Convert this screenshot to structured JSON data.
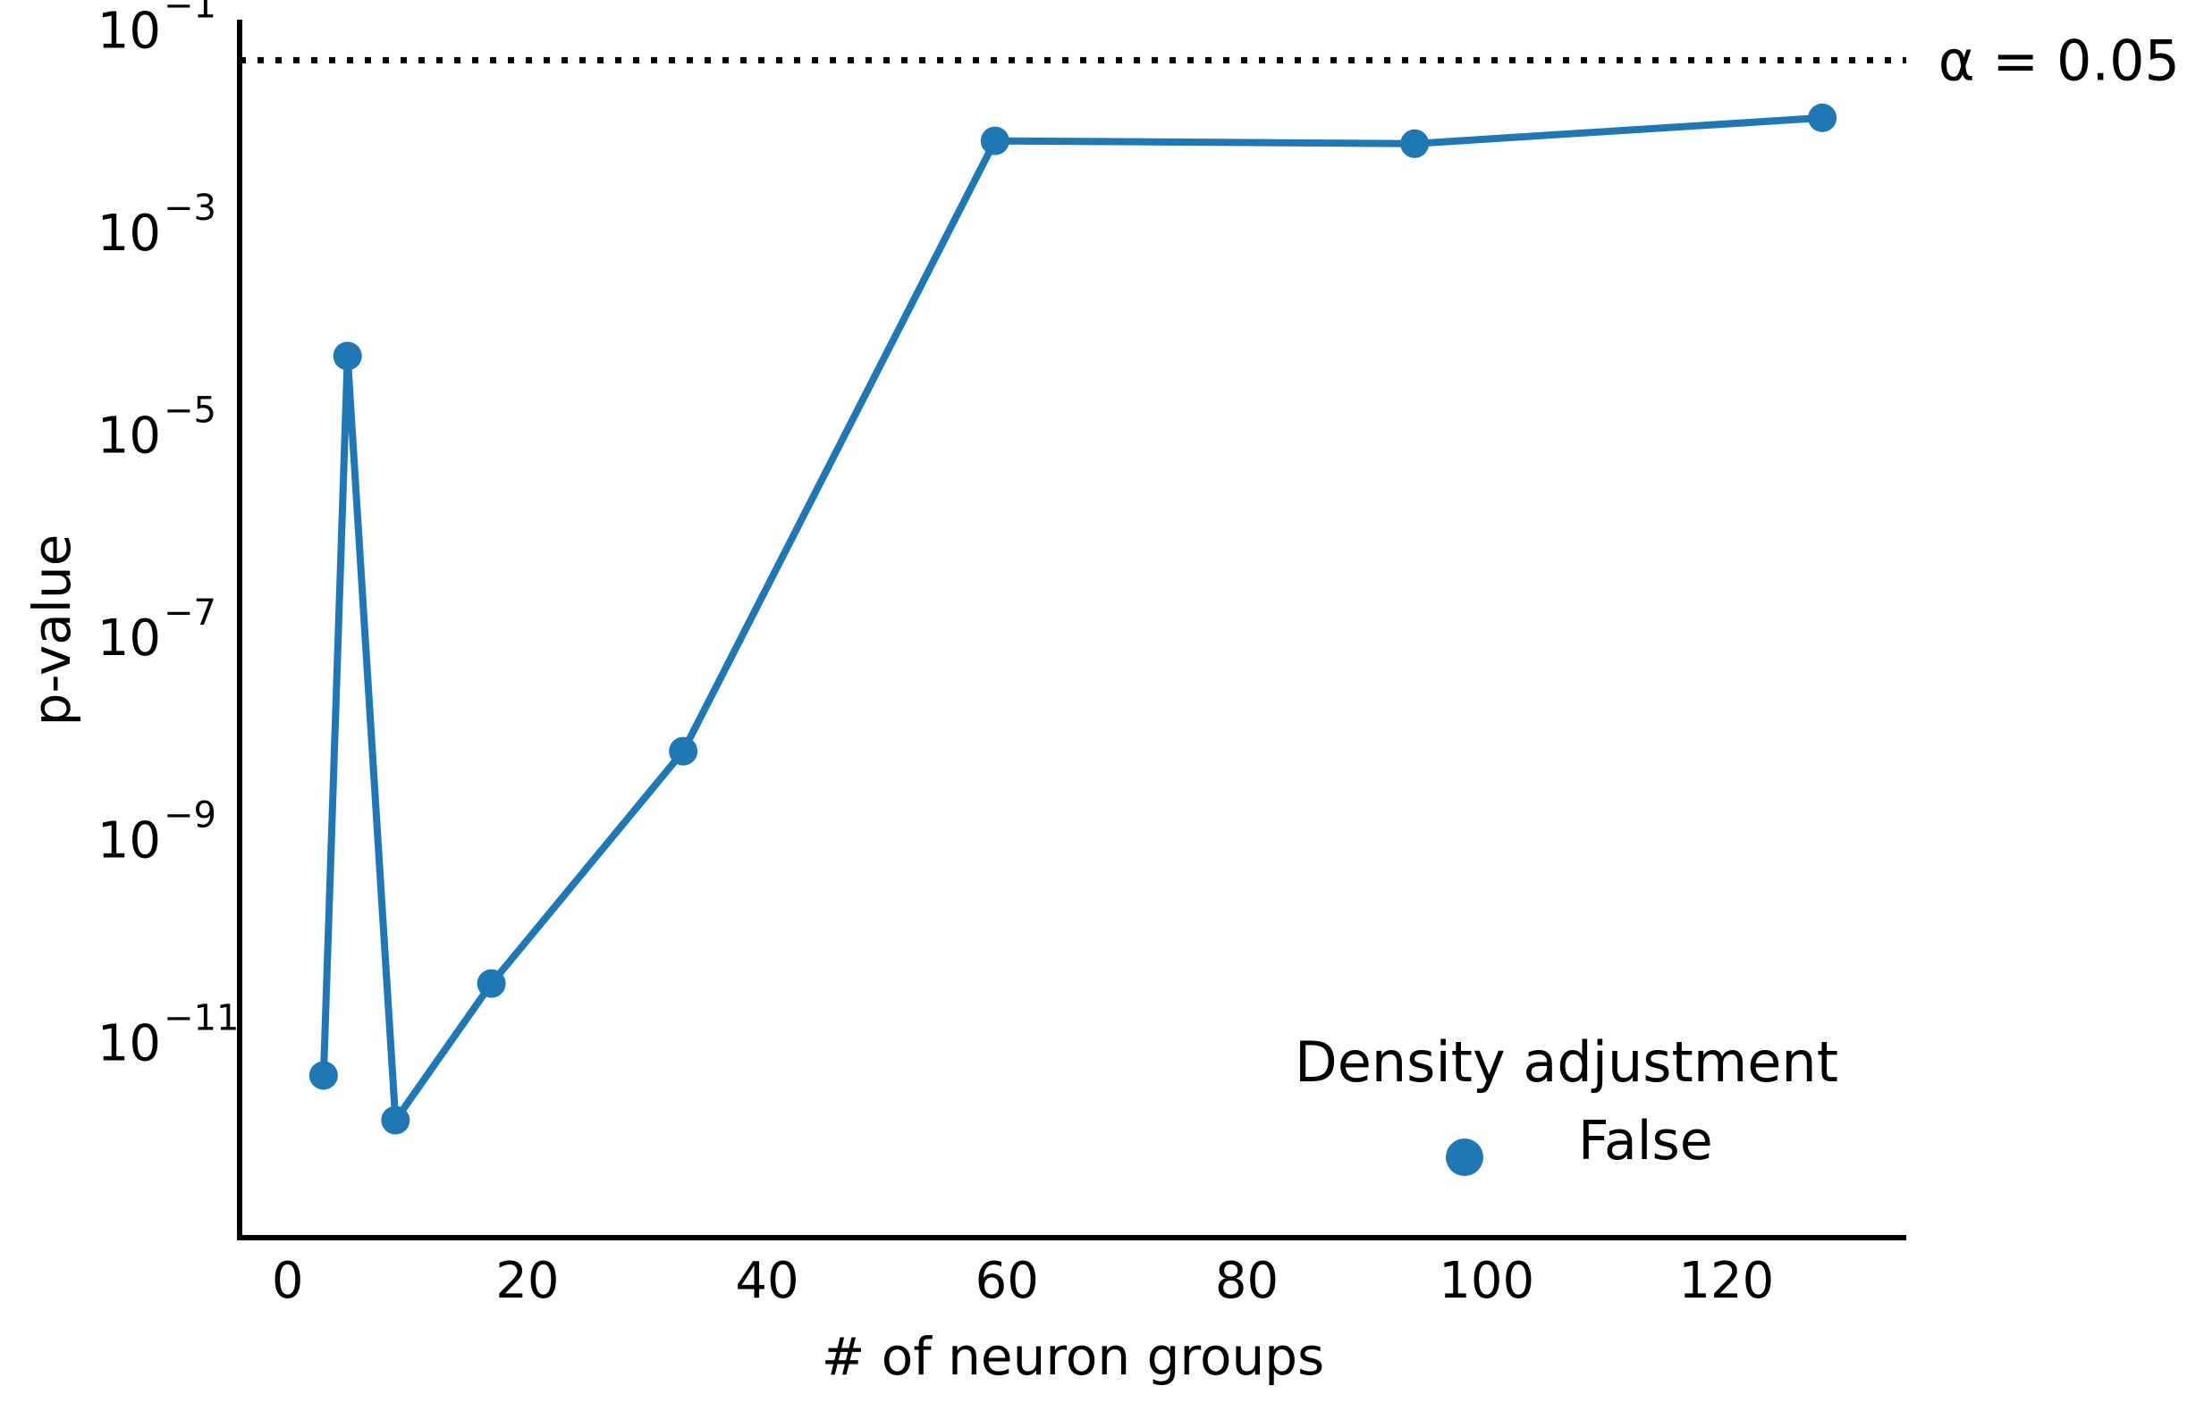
{
  "chart_data": {
    "type": "line",
    "title": "",
    "xlabel": "# of neuron groups",
    "ylabel": "p-value",
    "x_scale": "linear",
    "y_scale": "log",
    "xlim": [
      -4,
      135
    ],
    "ylim_exp": [
      -12.93,
      -0.9
    ],
    "x_ticks": [
      0,
      20,
      40,
      60,
      80,
      100,
      120
    ],
    "x_tick_labels": [
      "0",
      "20",
      "40",
      "60",
      "80",
      "100",
      "120"
    ],
    "y_ticks_exp": [
      -11,
      -9,
      -7,
      -5,
      -3,
      -1
    ],
    "y_tick_base": "10",
    "y_tick_exponents": [
      "−11",
      "−9",
      "−7",
      "−5",
      "−3",
      "−1"
    ],
    "grid": false,
    "legend": {
      "title": "Density adjustment",
      "placement": "lower-right",
      "entries": [
        {
          "label": "False",
          "color": "#1f77b4"
        }
      ]
    },
    "series": [
      {
        "name": "False",
        "color": "#1f77b4",
        "x": [
          3,
          5,
          9,
          17,
          33,
          59,
          94,
          128
        ],
        "y": [
          4.7e-12,
          6e-05,
          1.7e-12,
          3.8e-11,
          7.5e-09,
          0.008,
          0.0075,
          0.0135
        ]
      }
    ],
    "reference_line": {
      "value": 0.05,
      "label": "α = 0.05",
      "style": "dotted",
      "color": "#000000"
    }
  }
}
